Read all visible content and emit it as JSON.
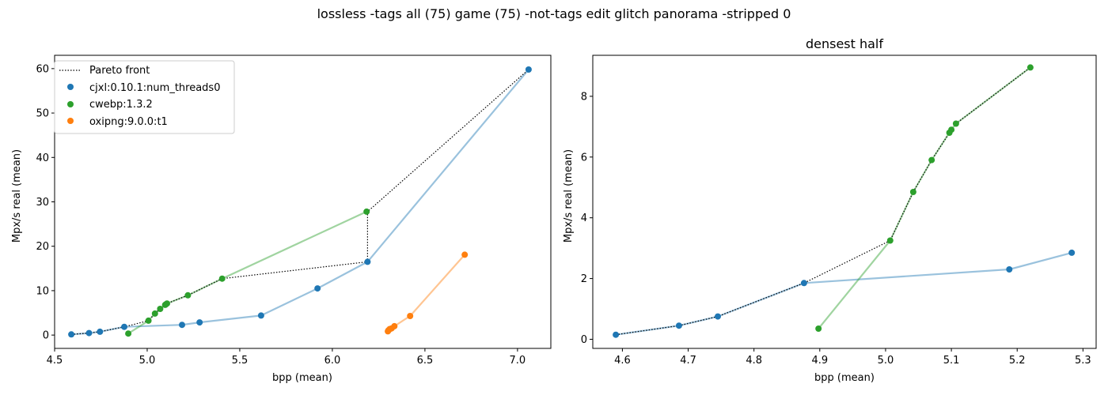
{
  "figure": {
    "suptitle": "lossless -tags all (75) game (75) -not-tags edit glitch panorama -stripped 0"
  },
  "series_styles": {
    "pareto": {
      "name": "Pareto front",
      "color": "#000000"
    },
    "cjxl": {
      "name": "cjxl:0.10.1:num_threads0",
      "color": "#1f77b4"
    },
    "cwebp": {
      "name": "cwebp:1.3.2",
      "color": "#2ca02c"
    },
    "oxipng": {
      "name": "oxipng:9.0.0:t1",
      "color": "#ff7f0e"
    }
  },
  "chart_data": [
    {
      "type": "scatter",
      "title": "",
      "xlabel": "bpp (mean)",
      "ylabel": "Mpx/s real (mean)",
      "xlim": [
        4.5,
        7.18
      ],
      "ylim": [
        -3.0,
        63.0
      ],
      "xticks": [
        4.5,
        5.0,
        5.5,
        6.0,
        6.5,
        7.0
      ],
      "yticks": [
        0,
        10,
        20,
        30,
        40,
        50,
        60
      ],
      "grid": false,
      "legend": "top-left",
      "series": [
        {
          "key": "cjxl",
          "name": "cjxl:0.10.1:num_threads0",
          "x": [
            4.59,
            4.686,
            4.745,
            4.876,
            5.188,
            5.283,
            5.615,
            5.92,
            6.19,
            7.06
          ],
          "y": [
            0.15,
            0.45,
            0.75,
            1.85,
            2.3,
            2.85,
            4.4,
            10.5,
            16.5,
            59.8
          ]
        },
        {
          "key": "cwebp",
          "name": "cwebp:1.3.2",
          "x": [
            4.898,
            5.007,
            5.042,
            5.07,
            5.097,
            5.1,
            5.107,
            5.22,
            5.405,
            6.185
          ],
          "y": [
            0.35,
            3.25,
            4.85,
            5.9,
            6.8,
            6.9,
            7.1,
            8.95,
            12.7,
            27.8
          ]
        },
        {
          "key": "oxipng",
          "name": "oxipng:9.0.0:t1",
          "x": [
            6.3,
            6.302,
            6.305,
            6.31,
            6.32,
            6.335,
            6.42,
            6.715
          ],
          "y": [
            0.85,
            1.0,
            1.15,
            1.35,
            1.5,
            2.0,
            4.3,
            18.1
          ]
        }
      ],
      "pareto_front": {
        "x": [
          4.59,
          4.686,
          4.745,
          4.876,
          5.007,
          5.042,
          5.07,
          5.097,
          5.1,
          5.107,
          5.22,
          5.405,
          6.19,
          6.19,
          7.06
        ],
        "y": [
          0.15,
          0.45,
          0.75,
          1.85,
          3.25,
          4.85,
          5.9,
          6.8,
          6.9,
          7.1,
          8.95,
          12.7,
          16.5,
          27.8,
          59.8
        ]
      }
    },
    {
      "type": "scatter",
      "title": "densest half",
      "xlabel": "bpp (mean)",
      "ylabel": "Mpx/s real (mean)",
      "xlim": [
        4.555,
        5.32
      ],
      "ylim": [
        -0.3,
        9.35
      ],
      "xticks": [
        4.6,
        4.7,
        4.8,
        4.9,
        5.0,
        5.1,
        5.2,
        5.3
      ],
      "yticks": [
        0,
        2,
        4,
        6,
        8
      ],
      "grid": false,
      "series": [
        {
          "key": "cjxl",
          "name": "cjxl:0.10.1:num_threads0",
          "x": [
            4.59,
            4.686,
            4.745,
            4.876,
            5.188,
            5.283
          ],
          "y": [
            0.15,
            0.45,
            0.75,
            1.85,
            2.3,
            2.85
          ]
        },
        {
          "key": "cwebp",
          "name": "cwebp:1.3.2",
          "x": [
            4.898,
            5.007,
            5.042,
            5.07,
            5.097,
            5.1,
            5.107,
            5.22
          ],
          "y": [
            0.35,
            3.25,
            4.85,
            5.9,
            6.8,
            6.9,
            7.1,
            8.95
          ]
        }
      ],
      "pareto_front": {
        "x": [
          4.59,
          4.686,
          4.745,
          4.876,
          5.007,
          5.042,
          5.07,
          5.097,
          5.1,
          5.107,
          5.22
        ],
        "y": [
          0.15,
          0.45,
          0.75,
          1.85,
          3.25,
          4.85,
          5.9,
          6.8,
          6.9,
          7.1,
          8.95
        ]
      }
    }
  ]
}
